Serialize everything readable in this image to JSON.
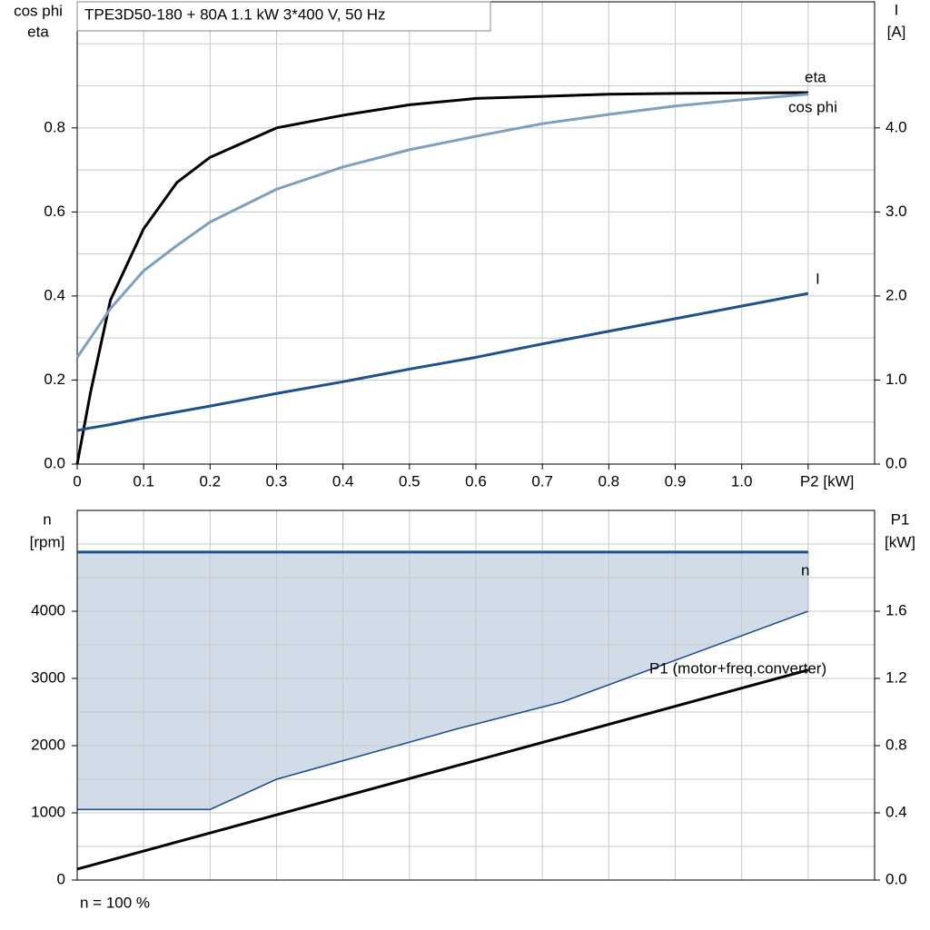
{
  "chart_data": [
    {
      "type": "line",
      "title": "TPE3D50-180 + 80A   1.1 kW   3*400 V, 50 Hz",
      "ylabel": [
        "cos phi",
        "eta"
      ],
      "y2label": [
        "I",
        "[A]"
      ],
      "xlim": [
        0,
        1.2
      ],
      "xticks": [
        0,
        0.1,
        0.2,
        0.3,
        0.4,
        0.5,
        0.6,
        0.7,
        0.8,
        0.9,
        {
          "value": 1,
          "label": "1.0"
        },
        {
          "value": 1.1,
          "label": "P2 [kW]"
        }
      ],
      "ylim": [
        0,
        1.1
      ],
      "yticks": [
        {
          "value": 0,
          "label": "0.0"
        },
        0.2,
        0.4,
        0.6,
        0.8
      ],
      "yminor": [
        0.1,
        0.3,
        0.5,
        0.7,
        0.9,
        1.0
      ],
      "y2lim": [
        0,
        5.5
      ],
      "y2ticks": [
        {
          "value": 0,
          "label": "0.0"
        },
        {
          "value": 1,
          "label": "1.0"
        },
        {
          "value": 2,
          "label": "2.0"
        },
        {
          "value": 3,
          "label": "3.0"
        },
        {
          "value": 4,
          "label": "4.0"
        }
      ],
      "grid": true,
      "x": [
        0,
        0.02,
        0.05,
        0.1,
        0.15,
        0.2,
        0.3,
        0.4,
        0.5,
        0.6,
        0.7,
        0.8,
        0.9,
        1.0,
        1.1
      ],
      "series": [
        {
          "name": "eta",
          "color": "#000000",
          "values": [
            0,
            0.17,
            0.39,
            0.56,
            0.67,
            0.73,
            0.8,
            0.83,
            0.855,
            0.87,
            0.875,
            0.88,
            0.882,
            0.883,
            0.884
          ]
        },
        {
          "name": "cos phi",
          "color": "#7f9fbd",
          "values": [
            0.254,
            0.3,
            0.37,
            0.46,
            0.52,
            0.576,
            0.654,
            0.707,
            0.748,
            0.78,
            0.81,
            0.832,
            0.852,
            0.867,
            0.88
          ]
        },
        {
          "name": "I",
          "color": "#1f5089",
          "axis": "y2",
          "values": [
            0.4,
            0.43,
            0.47,
            0.55,
            0.62,
            0.69,
            0.84,
            0.98,
            1.13,
            1.27,
            1.43,
            1.58,
            1.73,
            1.88,
            2.03
          ]
        }
      ]
    },
    {
      "type": "line",
      "ylabel": [
        "n",
        "[rpm]"
      ],
      "y2label": [
        "P1",
        "[kW]"
      ],
      "xlim": [
        0,
        1.2
      ],
      "xgrid": [
        0.1,
        0.2,
        0.3,
        0.4,
        0.5,
        0.6,
        0.7,
        0.8,
        0.9,
        1.0,
        1.1
      ],
      "ylim": [
        0,
        5500
      ],
      "yticks": [
        0,
        1000,
        2000,
        3000,
        4000
      ],
      "yminor": [
        500,
        1500,
        2500,
        3500,
        4500,
        5000
      ],
      "y2lim": [
        0,
        2.2
      ],
      "y2ticks": [
        {
          "value": 0,
          "label": "0.0"
        },
        0.4,
        0.8,
        1.2,
        1.6
      ],
      "grid": true,
      "footer": "n = 100 %",
      "n_min": {
        "color": "#1f5089",
        "fill": "#d1dce8",
        "x": [
          0,
          0.2,
          0.3,
          0.57,
          0.73,
          1.1
        ],
        "values": [
          1050,
          1050,
          1500,
          2245,
          2650,
          4000
        ]
      },
      "series": [
        {
          "name": "n",
          "color": "#1f5089",
          "x": [
            0,
            1.1
          ],
          "values": [
            4880,
            4880
          ]
        },
        {
          "name": "P1 (motor+freq.converter)",
          "color": "#000000",
          "axis": "y2",
          "x": [
            0,
            1.1
          ],
          "values": [
            0.065,
            1.25
          ]
        }
      ]
    }
  ]
}
